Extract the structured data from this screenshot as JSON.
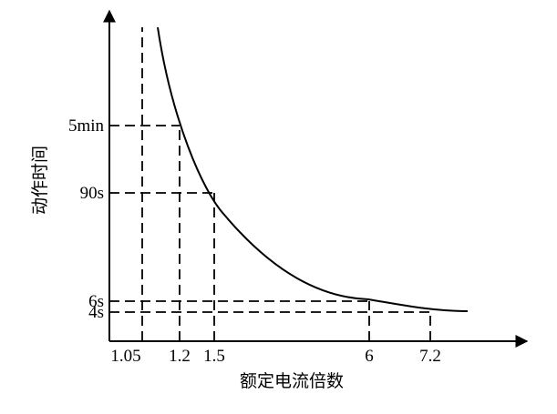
{
  "chart_data": {
    "type": "line",
    "title": "",
    "xlabel": "额定电流倍数",
    "ylabel": "动作时间",
    "x_ticks": [
      "1.05",
      "1.2",
      "1.5",
      "6",
      "7.2"
    ],
    "y_ticks": [
      "5min",
      "90s",
      "6s",
      "4s"
    ],
    "series": [
      {
        "points": [
          {
            "x": "1.2",
            "y": "5min"
          },
          {
            "x": "1.5",
            "y": "90s"
          },
          {
            "x": "6",
            "y": "6s"
          },
          {
            "x": "7.2",
            "y": "4s"
          }
        ]
      }
    ],
    "reference_lines": {
      "vertical": [
        "1.05",
        "1.2",
        "1.5",
        "6",
        "7.2"
      ],
      "horizontal": [
        "5min",
        "90s",
        "6s",
        "4s"
      ]
    },
    "grid": false,
    "axes_arrows": true,
    "scale": "non-linear"
  }
}
